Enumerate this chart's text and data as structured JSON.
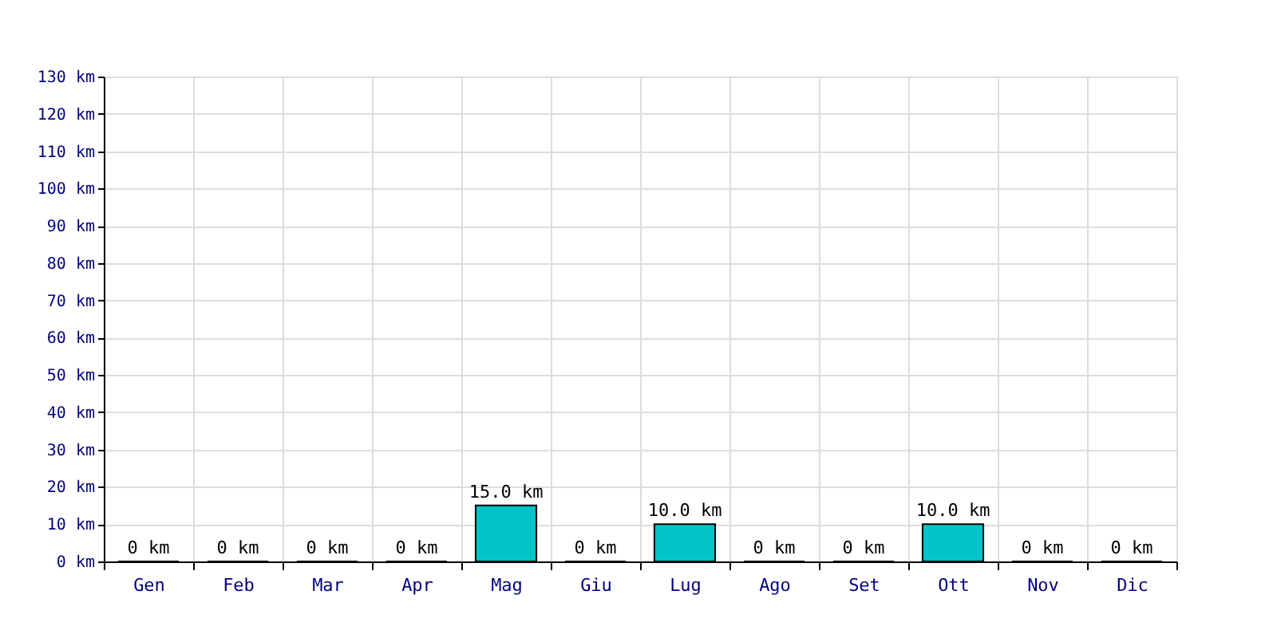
{
  "chart_data": {
    "type": "bar",
    "categories": [
      "Gen",
      "Feb",
      "Mar",
      "Apr",
      "Mag",
      "Giu",
      "Lug",
      "Ago",
      "Set",
      "Ott",
      "Nov",
      "Dic"
    ],
    "values": [
      0,
      0,
      0,
      0,
      15,
      0,
      10,
      0,
      0,
      10,
      0,
      0
    ],
    "value_labels": [
      "0 km",
      "0 km",
      "0 km",
      "0 km",
      "15.0 km",
      "0 km",
      "10.0 km",
      "0 km",
      "0 km",
      "10.0 km",
      "0 km",
      "0 km"
    ],
    "color": "#00c4c8",
    "ylim": [
      0,
      130
    ],
    "yticks": [
      {
        "value": 0,
        "label": "0 km"
      },
      {
        "value": 10,
        "label": "10 km"
      },
      {
        "value": 20,
        "label": "20 km"
      },
      {
        "value": 30,
        "label": "30 km"
      },
      {
        "value": 40,
        "label": "40 km"
      },
      {
        "value": 50,
        "label": "50 km"
      },
      {
        "value": 60,
        "label": "60 km"
      },
      {
        "value": 70,
        "label": "70 km"
      },
      {
        "value": 80,
        "label": "80 km"
      },
      {
        "value": 90,
        "label": "90 km"
      },
      {
        "value": 100,
        "label": "100 km"
      },
      {
        "value": 110,
        "label": "110 km"
      },
      {
        "value": 120,
        "label": "120 km"
      },
      {
        "value": 130,
        "label": "130 km"
      }
    ],
    "grid": true
  }
}
